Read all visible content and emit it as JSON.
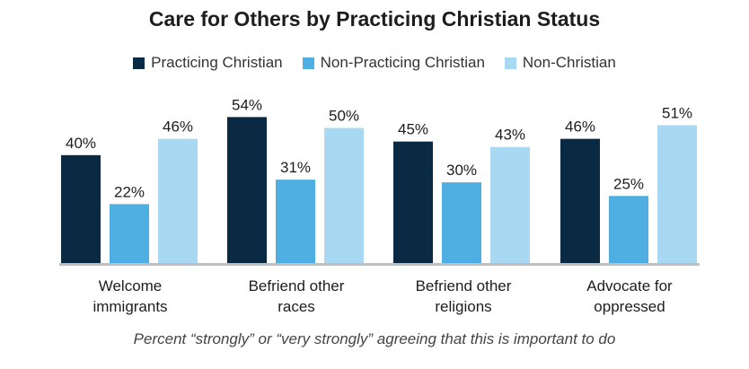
{
  "chart_data": {
    "type": "bar",
    "title": "Care for Others by Practicing Christian Status",
    "categories": [
      [
        "Welcome",
        "immigrants"
      ],
      [
        "Befriend other",
        "races"
      ],
      [
        "Befriend other",
        "religions"
      ],
      [
        "Advocate for",
        "oppressed"
      ]
    ],
    "series": [
      {
        "name": "Practicing Christian",
        "color": "#0a2a43",
        "values": [
          40,
          54,
          45,
          46
        ]
      },
      {
        "name": "Non-Practicing Christian",
        "color": "#4fafe3",
        "values": [
          22,
          31,
          30,
          25
        ]
      },
      {
        "name": "Non-Christian",
        "color": "#a9d8f2",
        "values": [
          46,
          50,
          43,
          51
        ]
      }
    ],
    "value_suffix": "%",
    "ylim": [
      0,
      60
    ],
    "grid": false,
    "legend_position": "top",
    "footnote": "Percent “strongly” or “very strongly” agreeing that this is important to do"
  }
}
